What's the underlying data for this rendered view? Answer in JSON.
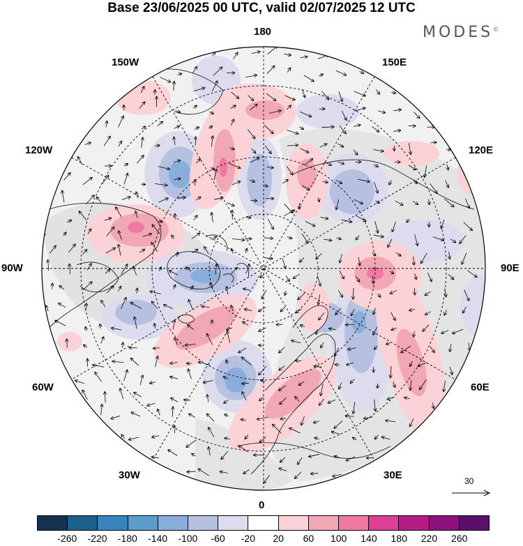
{
  "title": "Base 23/06/2025 00 UTC, valid 02/07/2025 12 UTC",
  "brand": "MODES",
  "brand_mark": "©",
  "projection": "polar stereographic, North Pole",
  "longitude_labels": {
    "top": "180",
    "bottom": "0",
    "left": "90W",
    "right": "90E",
    "upper_left_1": "150W",
    "upper_left_2": "120W",
    "upper_right_1": "150E",
    "upper_right_2": "120E",
    "lower_left_1": "60W",
    "lower_left_2": "30W",
    "lower_right_1": "60E",
    "lower_right_2": "30E"
  },
  "wind_reference_value": "30",
  "colorbar": {
    "ticks": [
      "-260",
      "-220",
      "-180",
      "-140",
      "-100",
      "-60",
      "-20",
      "20",
      "60",
      "100",
      "140",
      "180",
      "220",
      "260"
    ],
    "colors": [
      "#13324f",
      "#1d5f8c",
      "#3a84bd",
      "#5b9dcc",
      "#8aaedb",
      "#b6c1e2",
      "#dcdcee",
      "#ffffff",
      "#fbd3d6",
      "#f2a8b4",
      "#ef79a3",
      "#de3f95",
      "#b71b86",
      "#8d117e",
      "#5a1068"
    ]
  },
  "colors": {
    "land_grey": "#e6e6e6",
    "ocean": "#f1f1f1",
    "graticule": "#000000"
  }
}
